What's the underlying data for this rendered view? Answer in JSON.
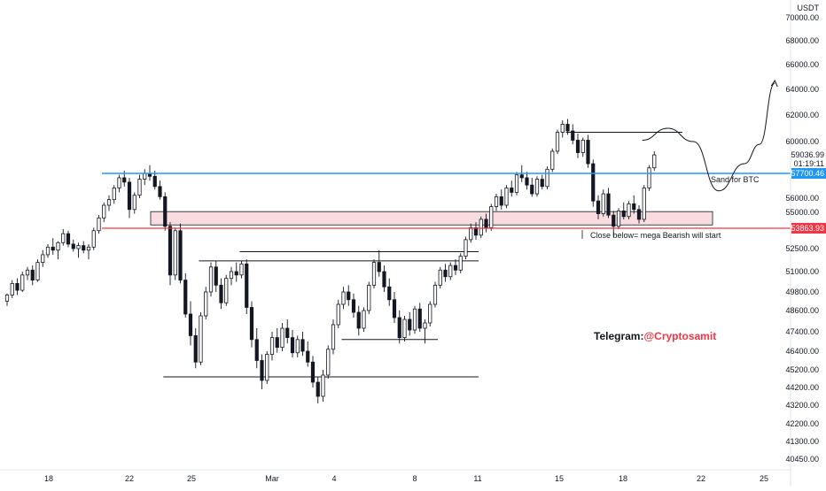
{
  "chart_data": {
    "type": "candlestick",
    "currency": "USDT",
    "y_axis": {
      "range": [
        39800,
        71200
      ],
      "ticks": [
        "70000.00",
        "68000.00",
        "66000.00",
        "64000.00",
        "62000.00",
        "60000.00",
        "56000.00",
        "55000.00",
        "53863.93",
        "52500.00",
        "51000.00",
        "49800.00",
        "48600.00",
        "47400.00",
        "46400.00",
        "45200.00",
        "44200.00",
        "43200.00",
        "42200.00",
        "41300.00",
        "40450.00"
      ]
    },
    "x_axis": {
      "labels": [
        "18",
        "22",
        "25",
        "Mar",
        "4",
        "8",
        "11",
        "15",
        "18",
        "22",
        "25"
      ]
    },
    "price_tags": {
      "last_price": "59036.99",
      "countdown": "01:19:11",
      "blue_level": "57700.46",
      "red_level": "53863.93"
    },
    "levels": {
      "blue_line": 57700.46,
      "red_line": 53863.93
    },
    "candles": [
      [
        49200,
        49700,
        48900,
        49600
      ],
      [
        49600,
        50500,
        49400,
        50300
      ],
      [
        50300,
        50600,
        49600,
        49900
      ],
      [
        49900,
        51000,
        49800,
        50800
      ],
      [
        50800,
        51300,
        50500,
        51100
      ],
      [
        51100,
        51400,
        50200,
        50500
      ],
      [
        50500,
        51800,
        50400,
        51600
      ],
      [
        51600,
        52400,
        51300,
        52100
      ],
      [
        52100,
        52800,
        51900,
        52600
      ],
      [
        52600,
        53200,
        52100,
        52400
      ],
      [
        52400,
        53000,
        51800,
        52900
      ],
      [
        52900,
        53800,
        52700,
        53500
      ],
      [
        53500,
        53700,
        52600,
        52800
      ],
      [
        52800,
        53100,
        52300,
        52500
      ],
      [
        52500,
        52900,
        51900,
        52700
      ],
      [
        52700,
        53000,
        52200,
        52400
      ],
      [
        52400,
        52800,
        51800,
        52600
      ],
      [
        52600,
        53900,
        52400,
        53700
      ],
      [
        53700,
        54800,
        53500,
        54600
      ],
      [
        54600,
        55700,
        54300,
        55500
      ],
      [
        55500,
        56200,
        55100,
        55900
      ],
      [
        55900,
        56900,
        55600,
        56700
      ],
      [
        56700,
        57600,
        56400,
        57400
      ],
      [
        57400,
        57900,
        56800,
        57100
      ],
      [
        57100,
        57400,
        54600,
        55200
      ],
      [
        55200,
        56400,
        54900,
        56200
      ],
      [
        56200,
        57600,
        56000,
        57300
      ],
      [
        57300,
        58000,
        56900,
        57700
      ],
      [
        57700,
        58300,
        57200,
        57500
      ],
      [
        57500,
        57900,
        56600,
        56800
      ],
      [
        56800,
        57200,
        55900,
        56100
      ],
      [
        56100,
        56400,
        53700,
        54000
      ],
      [
        54000,
        54300,
        50200,
        50800
      ],
      [
        50800,
        53900,
        50500,
        53700
      ],
      [
        53700,
        54200,
        50300,
        50500
      ],
      [
        50500,
        50900,
        48200,
        48400
      ],
      [
        48400,
        49200,
        46700,
        47200
      ],
      [
        47200,
        47600,
        45300,
        45700
      ],
      [
        45700,
        48500,
        45500,
        48300
      ],
      [
        48300,
        50100,
        48100,
        49800
      ],
      [
        49800,
        51600,
        49500,
        51300
      ],
      [
        51300,
        51700,
        49800,
        50200
      ],
      [
        50200,
        50600,
        48700,
        49100
      ],
      [
        49100,
        50800,
        48900,
        50600
      ],
      [
        50600,
        51300,
        50200,
        51000
      ],
      [
        51000,
        51600,
        50400,
        50800
      ],
      [
        50800,
        51700,
        50600,
        51500
      ],
      [
        51500,
        51800,
        48400,
        48800
      ],
      [
        48800,
        49200,
        46600,
        47000
      ],
      [
        47000,
        47600,
        45300,
        45800
      ],
      [
        45800,
        46200,
        44100,
        44600
      ],
      [
        44600,
        46400,
        44400,
        46200
      ],
      [
        46200,
        47400,
        45800,
        47100
      ],
      [
        47100,
        47600,
        46300,
        46600
      ],
      [
        46600,
        47900,
        46400,
        47600
      ],
      [
        47600,
        48100,
        46800,
        47100
      ],
      [
        47100,
        47500,
        46000,
        46300
      ],
      [
        46300,
        47200,
        46000,
        47000
      ],
      [
        47000,
        47400,
        46100,
        46400
      ],
      [
        46400,
        46900,
        45400,
        45700
      ],
      [
        45700,
        46100,
        44200,
        44500
      ],
      [
        44500,
        44800,
        43300,
        43700
      ],
      [
        43700,
        45200,
        43400,
        44900
      ],
      [
        44900,
        46700,
        44700,
        46500
      ],
      [
        46500,
        48100,
        46200,
        47800
      ],
      [
        47800,
        49300,
        47600,
        49000
      ],
      [
        49000,
        50100,
        48700,
        49800
      ],
      [
        49800,
        50200,
        48900,
        49300
      ],
      [
        49300,
        49700,
        48200,
        48500
      ],
      [
        48500,
        48900,
        47200,
        47600
      ],
      [
        47600,
        48800,
        47400,
        48600
      ],
      [
        48600,
        50400,
        48400,
        50200
      ],
      [
        50200,
        51800,
        50000,
        51600
      ],
      [
        51600,
        52400,
        50700,
        51000
      ],
      [
        51000,
        51400,
        49800,
        50100
      ],
      [
        50100,
        50600,
        48900,
        49300
      ],
      [
        49300,
        49800,
        47900,
        48200
      ],
      [
        48200,
        48600,
        46800,
        47100
      ],
      [
        47100,
        48300,
        46900,
        48100
      ],
      [
        48100,
        48500,
        47200,
        47500
      ],
      [
        47500,
        48900,
        47300,
        48700
      ],
      [
        48700,
        49100,
        47400,
        47600
      ],
      [
        47600,
        48100,
        46800,
        47900
      ],
      [
        47900,
        49200,
        47700,
        49000
      ],
      [
        49000,
        50400,
        48800,
        50200
      ],
      [
        50200,
        51300,
        50000,
        51100
      ],
      [
        51100,
        51500,
        50400,
        50700
      ],
      [
        50700,
        51600,
        50500,
        51400
      ],
      [
        51400,
        51800,
        50800,
        51100
      ],
      [
        51100,
        52200,
        50900,
        52000
      ],
      [
        52000,
        53300,
        51800,
        53100
      ],
      [
        53100,
        54200,
        52900,
        53900
      ],
      [
        53900,
        54300,
        53100,
        53400
      ],
      [
        53400,
        54700,
        53200,
        54500
      ],
      [
        54500,
        54900,
        53600,
        53900
      ],
      [
        53900,
        55600,
        53700,
        55400
      ],
      [
        55400,
        56300,
        55100,
        56100
      ],
      [
        56100,
        56600,
        55200,
        55500
      ],
      [
        55500,
        56900,
        55300,
        56700
      ],
      [
        56700,
        57200,
        56100,
        56400
      ],
      [
        56400,
        57800,
        56200,
        57600
      ],
      [
        57600,
        58300,
        57100,
        57400
      ],
      [
        57400,
        57800,
        56600,
        56900
      ],
      [
        56900,
        57400,
        56100,
        56300
      ],
      [
        56300,
        57500,
        56100,
        57300
      ],
      [
        57300,
        57600,
        56600,
        56800
      ],
      [
        56800,
        58200,
        56600,
        58000
      ],
      [
        58000,
        59500,
        57800,
        59300
      ],
      [
        59300,
        60900,
        59100,
        60700
      ],
      [
        60700,
        61600,
        60300,
        61300
      ],
      [
        61300,
        61700,
        60500,
        60800
      ],
      [
        60800,
        61300,
        59800,
        60100
      ],
      [
        60100,
        60600,
        58800,
        59200
      ],
      [
        59200,
        60300,
        58900,
        60100
      ],
      [
        60100,
        60500,
        58100,
        58400
      ],
      [
        58400,
        58700,
        55400,
        55800
      ],
      [
        55800,
        56200,
        54500,
        54900
      ],
      [
        54900,
        56600,
        54700,
        56300
      ],
      [
        56300,
        56700,
        54600,
        54800
      ],
      [
        54800,
        55100,
        53300,
        54000
      ],
      [
        54000,
        55300,
        53800,
        55100
      ],
      [
        55100,
        55700,
        54500,
        54700
      ],
      [
        54700,
        55800,
        54500,
        55600
      ],
      [
        55600,
        56200,
        54900,
        55200
      ],
      [
        55200,
        55500,
        54200,
        54500
      ],
      [
        54500,
        56900,
        54300,
        56700
      ],
      [
        56700,
        58300,
        56500,
        58100
      ],
      [
        58100,
        59300,
        57900,
        59037
      ]
    ],
    "zone": {
      "top": 55050,
      "bottom": 54100,
      "label": ""
    },
    "annotations": [
      {
        "text": "Sand for BTC"
      },
      {
        "text": "Close below= mega Bearish will start"
      }
    ],
    "horizontal_segments": [
      {
        "from": 110,
        "to": 128,
        "price": 60700
      },
      {
        "from": 31,
        "to": 88,
        "price": 44800
      },
      {
        "from": 46,
        "to": 88,
        "price": 52300
      },
      {
        "from": 38,
        "to": 88,
        "price": 51700
      },
      {
        "from": 66,
        "to": 80,
        "price": 47000
      }
    ],
    "projection_path": [
      [
        60100,
        125
      ],
      [
        61000,
        130
      ],
      [
        60000,
        135
      ],
      [
        56500,
        140
      ],
      [
        58400,
        145
      ],
      [
        59800,
        148
      ],
      [
        64500,
        151
      ]
    ]
  },
  "watermark": {
    "prefix": "Telegram:",
    "handle": "@Cryptosamit"
  },
  "colors": {
    "up": "#131722",
    "down": "#131722",
    "up_fill": "#ffffff",
    "blue": "#2196f3",
    "red": "#f23645",
    "zone_fill": "#f9dcdf",
    "handle": "#f23645"
  }
}
